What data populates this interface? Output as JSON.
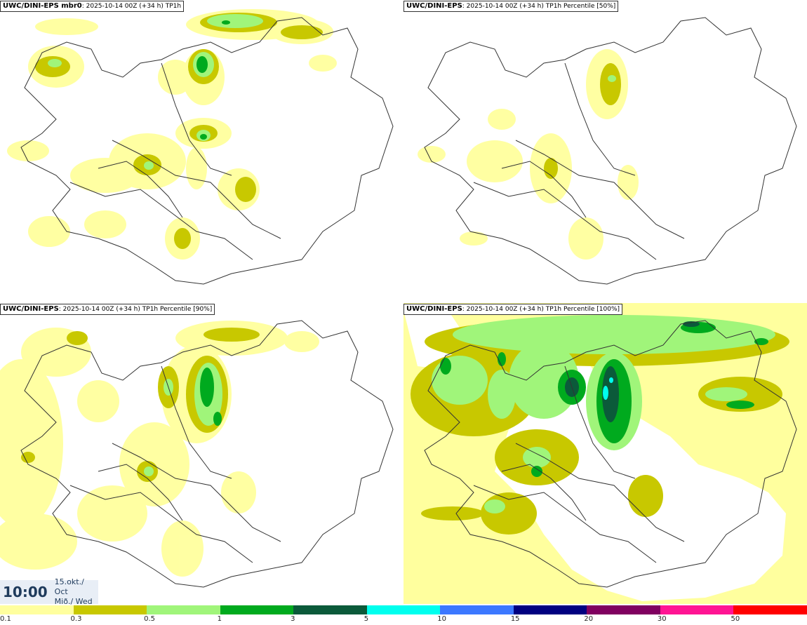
{
  "panels": [
    {
      "model": "UWC/DINI-EPS mbr0",
      "run": "2025-10-14 00Z (+34 h)",
      "field": "TP1h"
    },
    {
      "model": "UWC/DINI-EPS",
      "run": "2025-10-14 00Z (+34 h)",
      "field": "TP1h Percentile [50%]"
    },
    {
      "model": "UWC/DINI-EPS",
      "run": "2025-10-14 00Z (+34 h)",
      "field": "TP1h Percentile [90%]"
    },
    {
      "model": "UWC/DINI-EPS",
      "run": "2025-10-14 00Z (+34 h)",
      "field": "TP1h Percentile [100%]"
    }
  ],
  "valid_time": {
    "clock": "10:00",
    "date": "15.okt./ Oct",
    "weekday": "Mið./ Wed"
  },
  "colorbar": {
    "colors": [
      "#ffff9e",
      "#c8c800",
      "#a0f57a",
      "#00aa1e",
      "#0b5a3a",
      "#00ffee",
      "#3c78ff",
      "#000080",
      "#800060",
      "#ff1493",
      "#ff0000"
    ],
    "ticks": [
      "0.1",
      "0.3",
      "0.5",
      "1",
      "3",
      "5",
      "10",
      "15",
      "20",
      "30",
      "50"
    ]
  },
  "legend_colors": {
    "light": "#ffff9e",
    "olive": "#c8c800",
    "lightgreen": "#a0f57a",
    "green": "#00aa1e",
    "darkgreen": "#0b5a3a",
    "cyan": "#00ffee"
  }
}
